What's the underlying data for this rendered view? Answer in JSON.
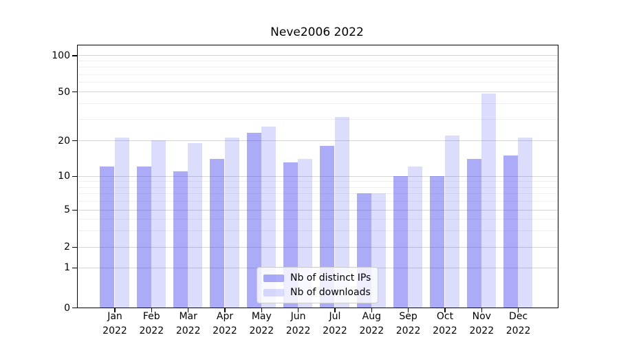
{
  "chart_data": {
    "type": "bar",
    "title": "Neve2006 2022",
    "categories": [
      "Jan",
      "Feb",
      "Mar",
      "Apr",
      "May",
      "Jun",
      "Jul",
      "Aug",
      "Sep",
      "Oct",
      "Nov",
      "Dec"
    ],
    "year_label": "2022",
    "series": [
      {
        "name": "Nb of distinct IPs",
        "color": "rgba(68,68,238,0.45)",
        "values": [
          12,
          12,
          11,
          14,
          23,
          13,
          18,
          7,
          10,
          10,
          14,
          15
        ]
      },
      {
        "name": "Nb of downloads",
        "color": "rgba(68,68,238,0.19)",
        "values": [
          21,
          20,
          19,
          21,
          26,
          14,
          31,
          7,
          12,
          22,
          48,
          21
        ]
      }
    ],
    "ylabel": "",
    "xlabel": "",
    "ylim": [
      0,
      120
    ],
    "yticks": [
      0,
      1,
      2,
      5,
      10,
      20,
      50,
      100
    ],
    "ytick_labels": [
      "0",
      "1",
      "2",
      "5",
      "10",
      "20",
      "50",
      "100"
    ],
    "minor_yticks": [
      3,
      4,
      6,
      7,
      8,
      9,
      30,
      40,
      60,
      70,
      80,
      90
    ],
    "grid": "on",
    "legend_position": "lower-center-inside",
    "scale_anchor_fracs": [
      [
        0,
        0.0
      ],
      [
        1,
        0.1524
      ],
      [
        2,
        0.2313
      ],
      [
        5,
        0.3732
      ],
      [
        10,
        0.502
      ],
      [
        20,
        0.6373
      ],
      [
        50,
        0.8239
      ],
      [
        100,
        0.9624
      ]
    ],
    "colors": {
      "major_grid": "#d4d4d4",
      "minor_grid": "#efefef",
      "spine": "#000000"
    }
  }
}
